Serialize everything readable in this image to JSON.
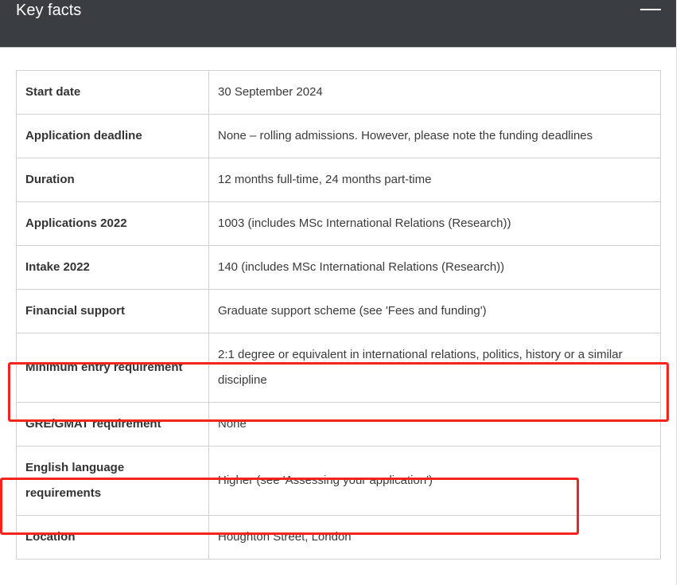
{
  "header": {
    "title": "Key facts",
    "collapse_icon": "minus-icon"
  },
  "highlight_color": "#f5231d",
  "rows": [
    {
      "label": "Start date",
      "value": "30 September 2024"
    },
    {
      "label": "Application deadline",
      "value": "None – rolling admissions. However, please note the funding deadlines"
    },
    {
      "label": "Duration",
      "value": "12 months full-time, 24 months part-time"
    },
    {
      "label": "Applications 2022",
      "value": "1003 (includes MSc International Relations (Research))"
    },
    {
      "label": "Intake 2022",
      "value": "140 (includes MSc International Relations (Research))"
    },
    {
      "label": "Financial support",
      "value": "Graduate support scheme (see 'Fees and funding')"
    },
    {
      "label": "Minimum entry requirement",
      "value": "2:1 degree or equivalent in international relations, politics, history or a similar discipline"
    },
    {
      "label": "GRE/GMAT requirement",
      "value": "None"
    },
    {
      "label": "English language requirements",
      "value": "Higher (see 'Assessing your application')"
    },
    {
      "label": "Location",
      "value": "Houghton Street, London"
    }
  ]
}
